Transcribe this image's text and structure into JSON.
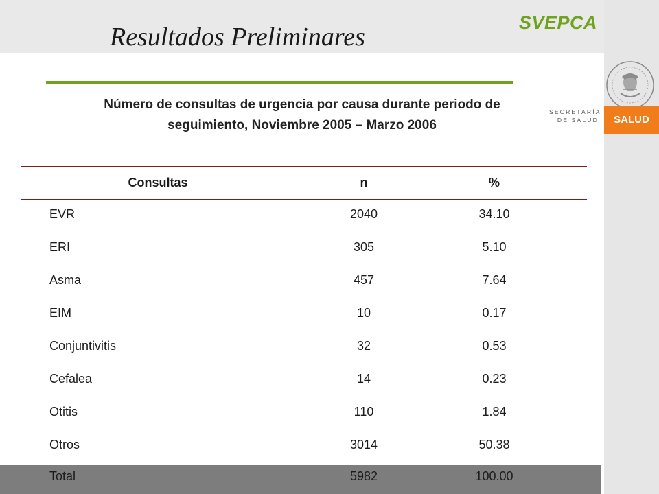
{
  "header": {
    "brand": "SVEPCA",
    "title": "Resultados Preliminares"
  },
  "sidebar": {
    "secretaria": "SECRETARÍA",
    "de_salud": "DE SALUD",
    "badge": "SALUD",
    "seal_icon": "mexico-national-seal"
  },
  "subtitle": {
    "line1": "Número de consultas de urgencia por causa durante periodo de",
    "line2": "seguimiento, Noviembre 2005 – Marzo 2006"
  },
  "table": {
    "headers": [
      "Consultas",
      "n",
      "%"
    ],
    "rows": [
      [
        "EVR",
        "2040",
        "34.10"
      ],
      [
        "ERI",
        "305",
        "5.10"
      ],
      [
        "Asma",
        "457",
        "7.64"
      ],
      [
        "EIM",
        "10",
        "0.17"
      ],
      [
        "Conjuntivitis",
        "32",
        "0.53"
      ],
      [
        "Cefalea",
        "14",
        "0.23"
      ],
      [
        "Otitis",
        "110",
        "1.84"
      ],
      [
        "Otros",
        "3014",
        "50.38"
      ],
      [
        "Total",
        "5982",
        "100.00"
      ]
    ]
  },
  "colors": {
    "accent_green": "#6fa31e",
    "rule_maroon": "#7a1f14",
    "salud_orange": "#f07d1a",
    "total_band": "#7d7d7d"
  }
}
